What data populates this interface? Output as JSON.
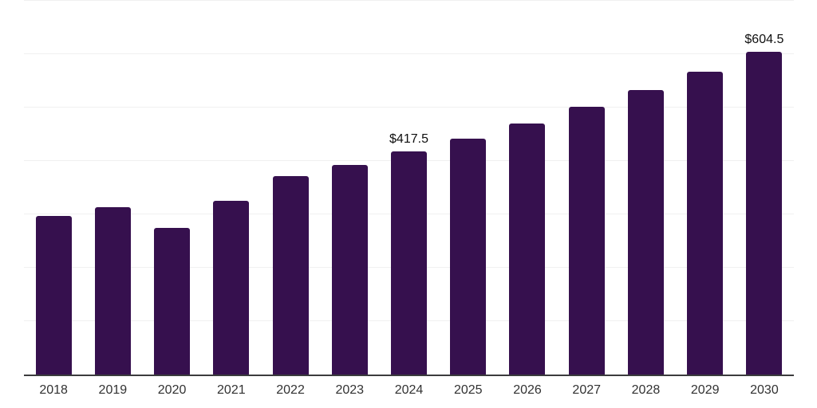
{
  "chart_data": {
    "type": "bar",
    "title": "",
    "xlabel": "",
    "ylabel": "",
    "categories": [
      "2018",
      "2019",
      "2020",
      "2021",
      "2022",
      "2023",
      "2024",
      "2025",
      "2026",
      "2027",
      "2028",
      "2029",
      "2030"
    ],
    "values": [
      297,
      314,
      274,
      326,
      372,
      393,
      417.5,
      442,
      470,
      501,
      533,
      567,
      604.5
    ],
    "data_labels": [
      {
        "index": 6,
        "text": "$417.5"
      },
      {
        "index": 12,
        "text": "$604.5"
      }
    ],
    "ylim": [
      0,
      700
    ],
    "gridlines": [
      100,
      200,
      300,
      400,
      500,
      600,
      700
    ],
    "grid_on": true,
    "legend": "none",
    "colors": {
      "bar": "#36104E",
      "grid": "#f0f0f0",
      "axis": "#3b3b3d",
      "data_label": "#0f0f0f",
      "tick_label": "#323232",
      "background": "#ffffff"
    }
  }
}
